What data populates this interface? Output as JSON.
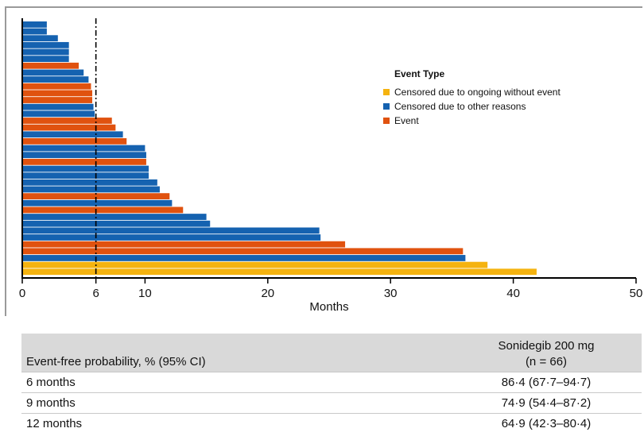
{
  "colors": {
    "censored_ongoing": "#F5B30F",
    "censored_other": "#1562B0",
    "event": "#E0520F"
  },
  "chart_data": {
    "type": "bar",
    "orientation": "horizontal",
    "xlabel": "Months",
    "xlim": [
      0,
      50
    ],
    "xticks": [
      0,
      6,
      10,
      20,
      30,
      40,
      50
    ],
    "reference_line": 6,
    "legend": {
      "title": "Event Type",
      "position": "top-right",
      "entries": [
        {
          "key": "censored_ongoing",
          "label": "Censored due to ongoing without event"
        },
        {
          "key": "censored_other",
          "label": "Censored due to other reasons"
        },
        {
          "key": "event",
          "label": "Event"
        }
      ]
    },
    "bars": [
      {
        "value": 2.0,
        "type": "censored_other"
      },
      {
        "value": 2.0,
        "type": "censored_other"
      },
      {
        "value": 2.9,
        "type": "censored_other"
      },
      {
        "value": 3.8,
        "type": "censored_other"
      },
      {
        "value": 3.8,
        "type": "censored_other"
      },
      {
        "value": 3.8,
        "type": "censored_other"
      },
      {
        "value": 4.6,
        "type": "event"
      },
      {
        "value": 5.0,
        "type": "censored_other"
      },
      {
        "value": 5.4,
        "type": "censored_other"
      },
      {
        "value": 5.6,
        "type": "event"
      },
      {
        "value": 5.7,
        "type": "event"
      },
      {
        "value": 5.7,
        "type": "event"
      },
      {
        "value": 5.8,
        "type": "censored_other"
      },
      {
        "value": 5.9,
        "type": "censored_other"
      },
      {
        "value": 7.3,
        "type": "event"
      },
      {
        "value": 7.6,
        "type": "event"
      },
      {
        "value": 8.2,
        "type": "censored_other"
      },
      {
        "value": 8.5,
        "type": "event"
      },
      {
        "value": 10.0,
        "type": "censored_other"
      },
      {
        "value": 10.1,
        "type": "censored_other"
      },
      {
        "value": 10.1,
        "type": "event"
      },
      {
        "value": 10.3,
        "type": "censored_other"
      },
      {
        "value": 10.3,
        "type": "censored_other"
      },
      {
        "value": 11.0,
        "type": "censored_other"
      },
      {
        "value": 11.2,
        "type": "censored_other"
      },
      {
        "value": 12.0,
        "type": "event"
      },
      {
        "value": 12.2,
        "type": "censored_other"
      },
      {
        "value": 13.1,
        "type": "event"
      },
      {
        "value": 15.0,
        "type": "censored_other"
      },
      {
        "value": 15.3,
        "type": "censored_other"
      },
      {
        "value": 24.2,
        "type": "censored_other"
      },
      {
        "value": 24.3,
        "type": "censored_other"
      },
      {
        "value": 26.3,
        "type": "event"
      },
      {
        "value": 35.9,
        "type": "event"
      },
      {
        "value": 36.1,
        "type": "censored_other"
      },
      {
        "value": 37.9,
        "type": "censored_ongoing"
      },
      {
        "value": 41.9,
        "type": "censored_ongoing"
      }
    ]
  },
  "table": {
    "header_left": "Event-free probability, % (95% CI)",
    "header_right_line1": "Sonidegib 200 mg",
    "header_right_line2": "(n = 66)",
    "rows": [
      {
        "label": "6 months",
        "value": "86·4 (67·7–94·7)"
      },
      {
        "label": "9 months",
        "value": "74·9 (54·4–87·2)"
      },
      {
        "label": "12 months",
        "value": "64·9 (42·3–80·4)"
      }
    ]
  }
}
